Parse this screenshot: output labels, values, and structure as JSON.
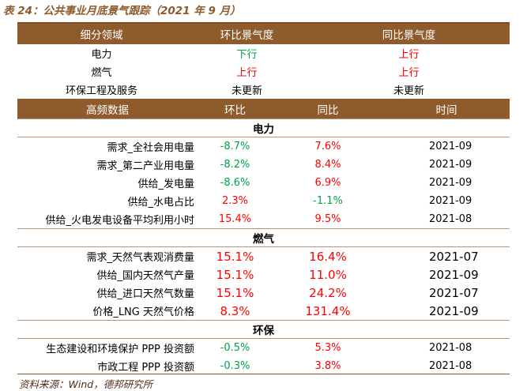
{
  "title": "表 24：公共事业月底景气跟踪（2021 年 9 月）",
  "colors": {
    "header_bg": "#8e5b2c",
    "up": "#ff0000",
    "down": "#00a34a"
  },
  "summary": {
    "headers": [
      "细分领域",
      "环比景气度",
      "同比景气度"
    ],
    "rows": [
      {
        "sector": "电力",
        "mom": "下行",
        "mom_color": "down",
        "yoy": "上行",
        "yoy_color": "up"
      },
      {
        "sector": "燃气",
        "mom": "上行",
        "mom_color": "up",
        "yoy": "上行",
        "yoy_color": "up"
      },
      {
        "sector": "环保工程及服务",
        "mom": "未更新",
        "mom_color": "none",
        "yoy": "未更新",
        "yoy_color": "none"
      }
    ]
  },
  "hf": {
    "headers": [
      "高频数据",
      "环比",
      "同比",
      "时间"
    ],
    "sections": [
      {
        "name": "电力",
        "rows": [
          {
            "label": "需求_全社会用电量",
            "mom": "-8.7%",
            "mom_color": "down",
            "yoy": "7.6%",
            "yoy_color": "up",
            "date": "2021-09"
          },
          {
            "label": "需求_第二产业用电量",
            "mom": "-8.2%",
            "mom_color": "down",
            "yoy": "8.4%",
            "yoy_color": "up",
            "date": "2021-09"
          },
          {
            "label": "供给_发电量",
            "mom": "-8.6%",
            "mom_color": "down",
            "yoy": "6.9%",
            "yoy_color": "up",
            "date": "2021-09"
          },
          {
            "label": "供给_水电占比",
            "mom": "2.3%",
            "mom_color": "up",
            "yoy": "-1.1%",
            "yoy_color": "down",
            "date": "2021-09"
          },
          {
            "label": "供给_火电发电设备平均利用小时",
            "mom": "15.4%",
            "mom_color": "up",
            "yoy": "9.5%",
            "yoy_color": "up",
            "date": "2021-08"
          }
        ]
      },
      {
        "name": "燃气",
        "rows": [
          {
            "label": "需求_天然气表观消费量",
            "mom": "15.1%",
            "mom_color": "up",
            "yoy": "16.4%",
            "yoy_color": "up",
            "date": "2021-07"
          },
          {
            "label": "供给_国内天然气产量",
            "mom": "15.1%",
            "mom_color": "up",
            "yoy": "11.0%",
            "yoy_color": "up",
            "date": "2021-09"
          },
          {
            "label": "供给_进口天然气数量",
            "mom": "15.1%",
            "mom_color": "up",
            "yoy": "24.2%",
            "yoy_color": "up",
            "date": "2021-07"
          },
          {
            "label": "价格_LNG 天然气价格",
            "mom": "8.3%",
            "mom_color": "up",
            "yoy": "131.4%",
            "yoy_color": "up",
            "date": "2021-09"
          }
        ]
      },
      {
        "name": "环保",
        "rows": [
          {
            "label": "生态建设和环境保护 PPP 投资额",
            "mom": "-0.5%",
            "mom_color": "down",
            "yoy": "5.3%",
            "yoy_color": "up",
            "date": "2021-08"
          },
          {
            "label": "市政工程 PPP 投资额",
            "mom": "-0.3%",
            "mom_color": "down",
            "yoy": "3.8%",
            "yoy_color": "up",
            "date": "2021-08"
          }
        ]
      }
    ]
  },
  "source": "资料来源：Wind，德邦研究所"
}
